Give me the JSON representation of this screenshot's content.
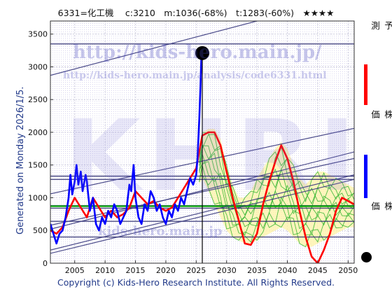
{
  "header": {
    "title": "6331=化工機　 c:3210　m:1036(-68%)　t:1283(-60%)　★★★★"
  },
  "side_label": "Generated on Monday 2026/1/5.",
  "footer": {
    "copyright": "Copyright (c) Kids-Hero Research Institute. All Rights Reserved."
  },
  "watermarks": {
    "url1": "http://kids-hero.main.jp/",
    "url2": "http://kids-hero.main.jp/analysis/code6331.html",
    "big": "KHRI",
    "small": "kids-hero.main.jp"
  },
  "legend": {
    "ai_forecast": {
      "label": "ＡＩ予測",
      "color": "#ff0000"
    },
    "past_price": {
      "label": "過去の株価",
      "color": "#0000ff"
    },
    "latest_price": {
      "label": "最新の株価",
      "color": "#000000"
    }
  },
  "chart_data": {
    "type": "line",
    "x_ticks": [
      2005,
      2010,
      2015,
      2020,
      2025,
      2030,
      2035,
      2040,
      2045,
      2050
    ],
    "y_ticks": [
      0,
      500,
      1000,
      1500,
      2000,
      2500,
      3000,
      3500
    ],
    "xlim": [
      2001,
      2051
    ],
    "ylim": [
      0,
      3700
    ],
    "grid": true,
    "series": [
      {
        "name": "過去の株価",
        "color": "#0000ff",
        "points": [
          [
            2001,
            600
          ],
          [
            2001.5,
            450
          ],
          [
            2002,
            300
          ],
          [
            2002.5,
            450
          ],
          [
            2003,
            500
          ],
          [
            2003.5,
            700
          ],
          [
            2004,
            1000
          ],
          [
            2004.3,
            1350
          ],
          [
            2004.6,
            1050
          ],
          [
            2005,
            1250
          ],
          [
            2005.3,
            1500
          ],
          [
            2005.6,
            1200
          ],
          [
            2006,
            1400
          ],
          [
            2006.3,
            1100
          ],
          [
            2006.8,
            1350
          ],
          [
            2007,
            1250
          ],
          [
            2007.5,
            800
          ],
          [
            2008,
            1000
          ],
          [
            2008.5,
            600
          ],
          [
            2009,
            500
          ],
          [
            2009.5,
            700
          ],
          [
            2010,
            600
          ],
          [
            2010.5,
            800
          ],
          [
            2011,
            700
          ],
          [
            2011.5,
            900
          ],
          [
            2012,
            800
          ],
          [
            2012.5,
            600
          ],
          [
            2013,
            700
          ],
          [
            2013.5,
            800
          ],
          [
            2014,
            1200
          ],
          [
            2014.3,
            1100
          ],
          [
            2014.7,
            1500
          ],
          [
            2015,
            1000
          ],
          [
            2015.5,
            700
          ],
          [
            2016,
            600
          ],
          [
            2016.5,
            900
          ],
          [
            2017,
            800
          ],
          [
            2017.5,
            1100
          ],
          [
            2018,
            1000
          ],
          [
            2018.5,
            800
          ],
          [
            2019,
            900
          ],
          [
            2019.5,
            700
          ],
          [
            2020,
            600
          ],
          [
            2020.5,
            800
          ],
          [
            2021,
            700
          ],
          [
            2021.5,
            900
          ],
          [
            2022,
            800
          ],
          [
            2022.5,
            1000
          ],
          [
            2023,
            900
          ],
          [
            2023.5,
            1100
          ],
          [
            2024,
            1300
          ],
          [
            2024.5,
            1200
          ],
          [
            2025,
            1350
          ],
          [
            2025.2,
            1600
          ],
          [
            2025.5,
            2200
          ],
          [
            2025.7,
            2700
          ],
          [
            2025.9,
            3300
          ],
          [
            2026,
            3210
          ]
        ]
      },
      {
        "name": "ＡＩ予測",
        "color": "#ff0000",
        "points": [
          [
            2001,
            500
          ],
          [
            2002,
            450
          ],
          [
            2003,
            550
          ],
          [
            2004,
            800
          ],
          [
            2005,
            1000
          ],
          [
            2006,
            850
          ],
          [
            2007,
            700
          ],
          [
            2008,
            1000
          ],
          [
            2009,
            850
          ],
          [
            2010,
            700
          ],
          [
            2011,
            800
          ],
          [
            2012,
            700
          ],
          [
            2013,
            750
          ],
          [
            2014,
            850
          ],
          [
            2015,
            1100
          ],
          [
            2016,
            1000
          ],
          [
            2017,
            900
          ],
          [
            2018,
            950
          ],
          [
            2019,
            850
          ],
          [
            2020,
            800
          ],
          [
            2021,
            850
          ],
          [
            2022,
            1000
          ],
          [
            2023,
            1150
          ],
          [
            2024,
            1300
          ],
          [
            2025,
            1450
          ],
          [
            2026,
            1950
          ],
          [
            2027,
            2000
          ],
          [
            2028,
            2000
          ],
          [
            2029,
            1800
          ],
          [
            2030,
            1400
          ],
          [
            2031,
            1000
          ],
          [
            2032,
            650
          ],
          [
            2033,
            300
          ],
          [
            2034,
            280
          ],
          [
            2035,
            450
          ],
          [
            2036,
            900
          ],
          [
            2037,
            1250
          ],
          [
            2038,
            1550
          ],
          [
            2039,
            1800
          ],
          [
            2040,
            1600
          ],
          [
            2041,
            1250
          ],
          [
            2042,
            800
          ],
          [
            2043,
            400
          ],
          [
            2044,
            100
          ],
          [
            2045,
            0
          ],
          [
            2046,
            200
          ],
          [
            2047,
            450
          ],
          [
            2048,
            800
          ],
          [
            2049,
            1000
          ],
          [
            2050,
            950
          ],
          [
            2051,
            900
          ]
        ]
      }
    ],
    "latest": {
      "x": 2026,
      "y": 3210
    },
    "forecast_band": {
      "x": [
        2025.5,
        2026,
        2027,
        2028,
        2029,
        2030,
        2031,
        2032,
        2033,
        2034,
        2035,
        2036,
        2037,
        2038,
        2039,
        2040,
        2041,
        2042,
        2043,
        2044,
        2045,
        2046,
        2047,
        2048,
        2049,
        2050,
        2051
      ],
      "upper": [
        1600,
        2000,
        2050,
        2050,
        1900,
        1500,
        1200,
        1000,
        1000,
        1100,
        1300,
        1450,
        1600,
        1750,
        1850,
        1750,
        1500,
        1300,
        1200,
        1300,
        1400,
        1400,
        1350,
        1300,
        1250,
        1200,
        1150
      ],
      "lower": [
        1200,
        1300,
        1100,
        900,
        700,
        500,
        400,
        350,
        300,
        300,
        350,
        400,
        450,
        500,
        550,
        500,
        400,
        300,
        250,
        250,
        300,
        350,
        400,
        450,
        500,
        550,
        550
      ]
    },
    "hlines": [
      {
        "y": 3350,
        "color": "#2a2a6e"
      },
      {
        "y": 1330,
        "color": "#2a2a6e"
      },
      {
        "y": 1280,
        "color": "#2a2a6e"
      },
      {
        "y": 880,
        "color": "#2a2a6e"
      },
      {
        "y": 840,
        "color": "#2a2a6e"
      },
      {
        "y": 640,
        "color": "#2a2a6e"
      },
      {
        "y": 400,
        "color": "#2a2a6e"
      },
      {
        "y": 870,
        "color": "#00aa00"
      }
    ],
    "trendlines": [
      {
        "x0": 2001,
        "y0": 2870,
        "x1": 2035,
        "y1": 3700,
        "color": "#3a3a7e"
      },
      {
        "x0": 2001,
        "y0": 1060,
        "x1": 2051,
        "y1": 2060,
        "color": "#3a3a7e"
      },
      {
        "x0": 2001,
        "y0": 580,
        "x1": 2051,
        "y1": 1600,
        "color": "#3a3a7e"
      },
      {
        "x0": 2001,
        "y0": 520,
        "x1": 2051,
        "y1": 1700,
        "color": "#3a3a7e"
      },
      {
        "x0": 2001,
        "y0": 200,
        "x1": 2051,
        "y1": 1350,
        "color": "#3a3a7e"
      },
      {
        "x0": 2001,
        "y0": 150,
        "x1": 2051,
        "y1": 1280,
        "color": "#3a3a7e"
      }
    ]
  }
}
